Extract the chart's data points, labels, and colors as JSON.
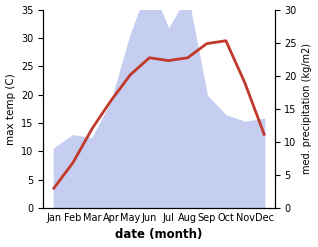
{
  "months": [
    "Jan",
    "Feb",
    "Mar",
    "Apr",
    "May",
    "Jun",
    "Jul",
    "Aug",
    "Sep",
    "Oct",
    "Nov",
    "Dec"
  ],
  "month_indices": [
    0,
    1,
    2,
    3,
    4,
    5,
    6,
    7,
    8,
    9,
    10,
    11
  ],
  "temperature": [
    3.5,
    8.0,
    14.0,
    19.0,
    23.5,
    26.5,
    26.0,
    26.5,
    29.0,
    29.5,
    22.0,
    13.0
  ],
  "precipitation": [
    9.0,
    11.0,
    10.5,
    16.0,
    26.0,
    34.0,
    27.0,
    32.0,
    17.0,
    14.0,
    13.0,
    13.5
  ],
  "temp_color": "#c0392b",
  "precip_fill_color": "#c5cdf0",
  "ylabel_left": "max temp (C)",
  "ylabel_right": "med. precipitation (kg/m2)",
  "xlabel": "date (month)",
  "ylim_left": [
    0,
    35
  ],
  "ylim_right": [
    0,
    30
  ],
  "yticks_left": [
    0,
    5,
    10,
    15,
    20,
    25,
    30,
    35
  ],
  "yticks_right": [
    0,
    5,
    10,
    15,
    20,
    25,
    30
  ],
  "temp_linewidth": 2.0
}
